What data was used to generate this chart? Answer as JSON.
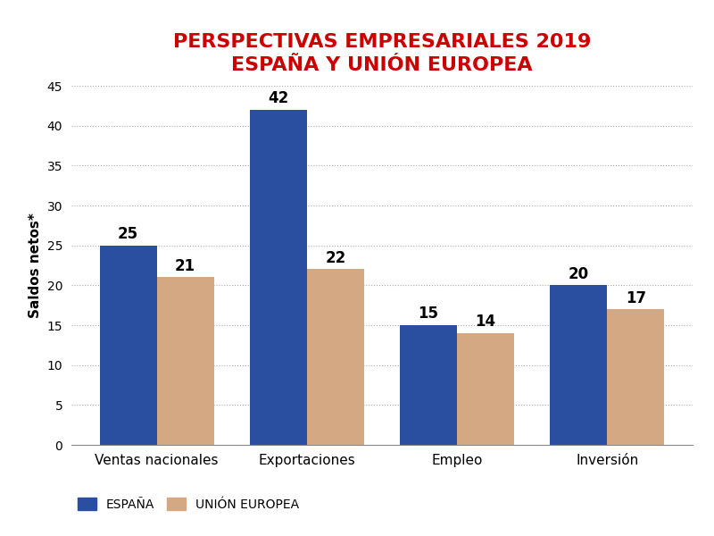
{
  "title_line1": "PERSPECTIVAS EMPRESARIALES 2019",
  "title_line2": "ESPAÑA Y UNIÓN EUROPEA",
  "title_color": "#cc0000",
  "categories": [
    "Ventas nacionales",
    "Exportaciones",
    "Empleo",
    "Inversión"
  ],
  "spain_values": [
    25,
    42,
    15,
    20
  ],
  "eu_values": [
    21,
    22,
    14,
    17
  ],
  "spain_color": "#2b4fa0",
  "eu_color": "#d4a882",
  "ylabel": "Saldos netos*",
  "ylim": [
    0,
    45
  ],
  "yticks": [
    0,
    5,
    10,
    15,
    20,
    25,
    30,
    35,
    40,
    45
  ],
  "bar_width": 0.38,
  "legend_spain": "ESPAÑA",
  "legend_eu": "UNIÓN EUROPEA",
  "background_color": "#ffffff",
  "grid_color": "#aaaaaa",
  "title_fontsize": 16,
  "label_fontsize": 11,
  "ylabel_fontsize": 11,
  "value_fontsize": 12,
  "legend_fontsize": 10,
  "tick_fontsize": 10
}
